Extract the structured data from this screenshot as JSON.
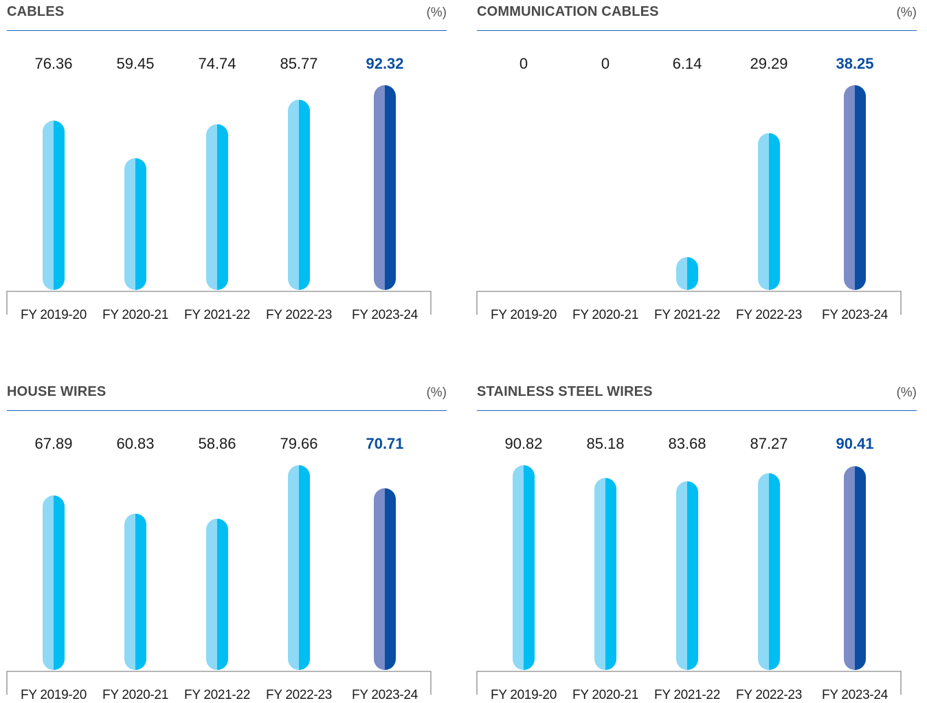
{
  "colors": {
    "bar_light": "#8ed9f6",
    "bar_main": "#00bdf2",
    "bar_highlight_light": "#7b8cc6",
    "bar_highlight_main": "#0a4ea3",
    "highlight_text": "#0a4ea3",
    "text": "#1a1a1a",
    "axis": "#8a8a8a"
  },
  "chart_data": [
    {
      "type": "bar",
      "title": "CABLES",
      "unit": "(%)",
      "categories": [
        "FY 2019-20",
        "FY 2020-21",
        "FY 2021-22",
        "FY 2022-23",
        "FY 2023-24"
      ],
      "values": [
        76.36,
        59.45,
        74.74,
        85.77,
        92.32
      ],
      "data_labels": [
        "76.36",
        "59.45",
        "74.74",
        "85.77",
        "92.32"
      ],
      "highlight_index": 4,
      "ylim": [
        0,
        92.32
      ]
    },
    {
      "type": "bar",
      "title": "COMMUNICATION CABLES",
      "unit": "(%)",
      "categories": [
        "FY 2019-20",
        "FY 2020-21",
        "FY 2021-22",
        "FY 2022-23",
        "FY 2023-24"
      ],
      "values": [
        0,
        0,
        6.14,
        29.29,
        38.25
      ],
      "data_labels": [
        "0",
        "0",
        "6.14",
        "29.29",
        "38.25"
      ],
      "highlight_index": 4,
      "ylim": [
        0,
        38.25
      ]
    },
    {
      "type": "bar",
      "title": "HOUSE WIRES",
      "unit": "(%)",
      "categories": [
        "FY 2019-20",
        "FY 2020-21",
        "FY 2021-22",
        "FY 2022-23",
        "FY 2023-24"
      ],
      "values": [
        67.89,
        60.83,
        58.86,
        79.66,
        70.71
      ],
      "data_labels": [
        "67.89",
        "60.83",
        "58.86",
        "79.66",
        "70.71"
      ],
      "highlight_index": 4,
      "ylim": [
        0,
        79.66
      ]
    },
    {
      "type": "bar",
      "title": "STAINLESS STEEL WIRES",
      "unit": "(%)",
      "categories": [
        "FY 2019-20",
        "FY 2020-21",
        "FY 2021-22",
        "FY 2022-23",
        "FY 2023-24"
      ],
      "values": [
        90.82,
        85.18,
        83.68,
        87.27,
        90.41
      ],
      "data_labels": [
        "90.82",
        "85.18",
        "83.68",
        "87.27",
        "90.41"
      ],
      "highlight_index": 4,
      "ylim": [
        0,
        90.82
      ]
    }
  ]
}
